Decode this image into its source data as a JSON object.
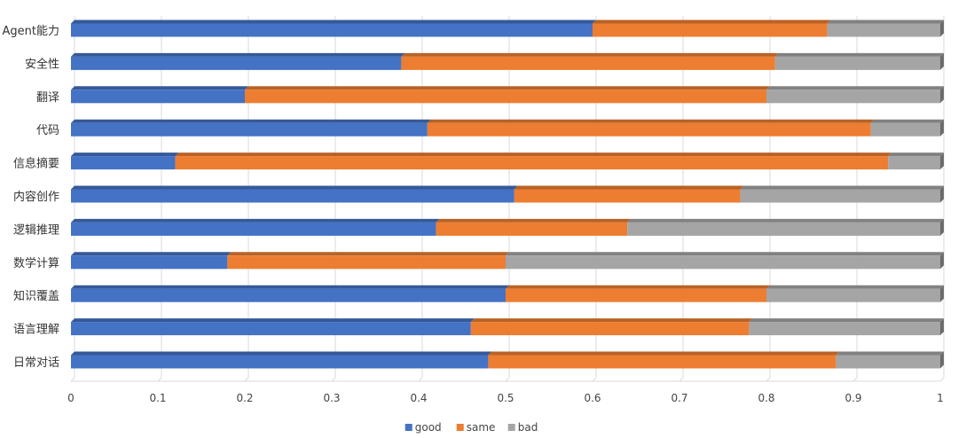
{
  "chart_data": {
    "type": "bar",
    "orientation": "horizontal",
    "stacked": true,
    "categories": [
      "Agent能力",
      "安全性",
      "翻译",
      "代码",
      "信息摘要",
      "内容创作",
      "逻辑推理",
      "数学计算",
      "知识覆盖",
      "语言理解",
      "日常对话"
    ],
    "series": [
      {
        "name": "good",
        "color": "#4472C4",
        "values": [
          0.6,
          0.38,
          0.2,
          0.41,
          0.12,
          0.51,
          0.42,
          0.18,
          0.5,
          0.46,
          0.48
        ]
      },
      {
        "name": "same",
        "color": "#ED7D31",
        "values": [
          0.27,
          0.43,
          0.6,
          0.51,
          0.82,
          0.26,
          0.22,
          0.32,
          0.3,
          0.32,
          0.4
        ]
      },
      {
        "name": "bad",
        "color": "#A5A5A5",
        "values": [
          0.13,
          0.19,
          0.2,
          0.08,
          0.06,
          0.23,
          0.36,
          0.5,
          0.2,
          0.22,
          0.12
        ]
      }
    ],
    "x_ticks": [
      "0",
      "0.1",
      "0.2",
      "0.3",
      "0.4",
      "0.5",
      "0.6",
      "0.7",
      "0.8",
      "0.9",
      "1"
    ],
    "xlim": [
      0,
      1
    ],
    "title": "",
    "xlabel": "",
    "ylabel": "",
    "grid": true,
    "legend": "bottom"
  }
}
